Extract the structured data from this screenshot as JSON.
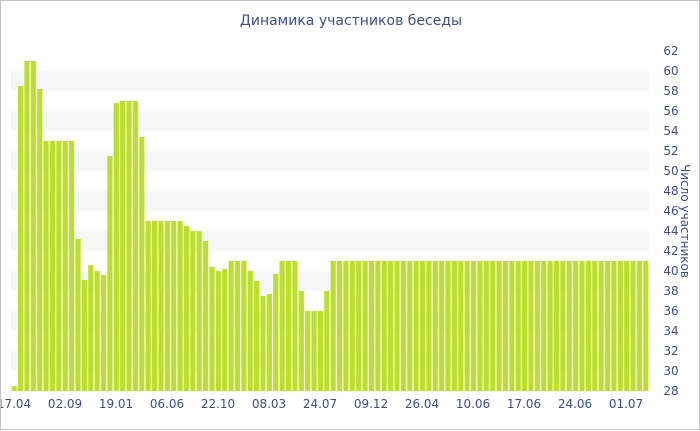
{
  "chart_data": {
    "type": "bar",
    "title": "Динамика участников беседы",
    "ylabel": "Число участников",
    "ylim": [
      28,
      62
    ],
    "y_ticks": [
      28,
      30,
      32,
      34,
      36,
      38,
      40,
      42,
      44,
      46,
      48,
      50,
      52,
      54,
      56,
      58,
      60,
      62
    ],
    "x_tick_labels": [
      "17.04",
      "02.09",
      "19.01",
      "06.06",
      "22.10",
      "08.03",
      "24.07",
      "09.12",
      "26.04",
      "10.06",
      "17.06",
      "24.06",
      "01.07"
    ],
    "grid": "alternating horizontal bands",
    "bar_color": "#bddf2c",
    "series": [
      {
        "values": [
          28.5,
          58.5,
          61,
          61,
          58.2,
          53,
          53,
          53,
          53,
          53,
          43.2,
          39.1,
          40.6,
          40,
          39.6,
          51.5,
          56.8,
          57,
          57,
          57,
          53.4,
          45,
          45,
          45,
          45,
          45,
          45,
          44.5,
          44,
          44,
          43,
          40.4,
          40,
          40.2,
          41,
          41,
          41,
          40,
          39,
          37.5,
          37.7,
          39.7,
          41,
          41,
          41,
          38,
          36,
          36,
          36,
          38,
          41,
          41,
          41,
          41,
          41,
          41,
          41,
          41,
          41,
          41,
          41,
          41,
          41,
          41,
          41,
          41,
          41,
          41,
          41,
          41,
          41,
          41,
          41,
          41,
          41,
          41,
          41,
          41,
          41,
          41,
          41,
          41,
          41,
          41,
          41,
          41,
          41,
          41,
          41,
          41,
          41,
          41,
          41,
          41,
          41,
          41,
          41,
          41,
          41,
          41
        ]
      }
    ]
  }
}
